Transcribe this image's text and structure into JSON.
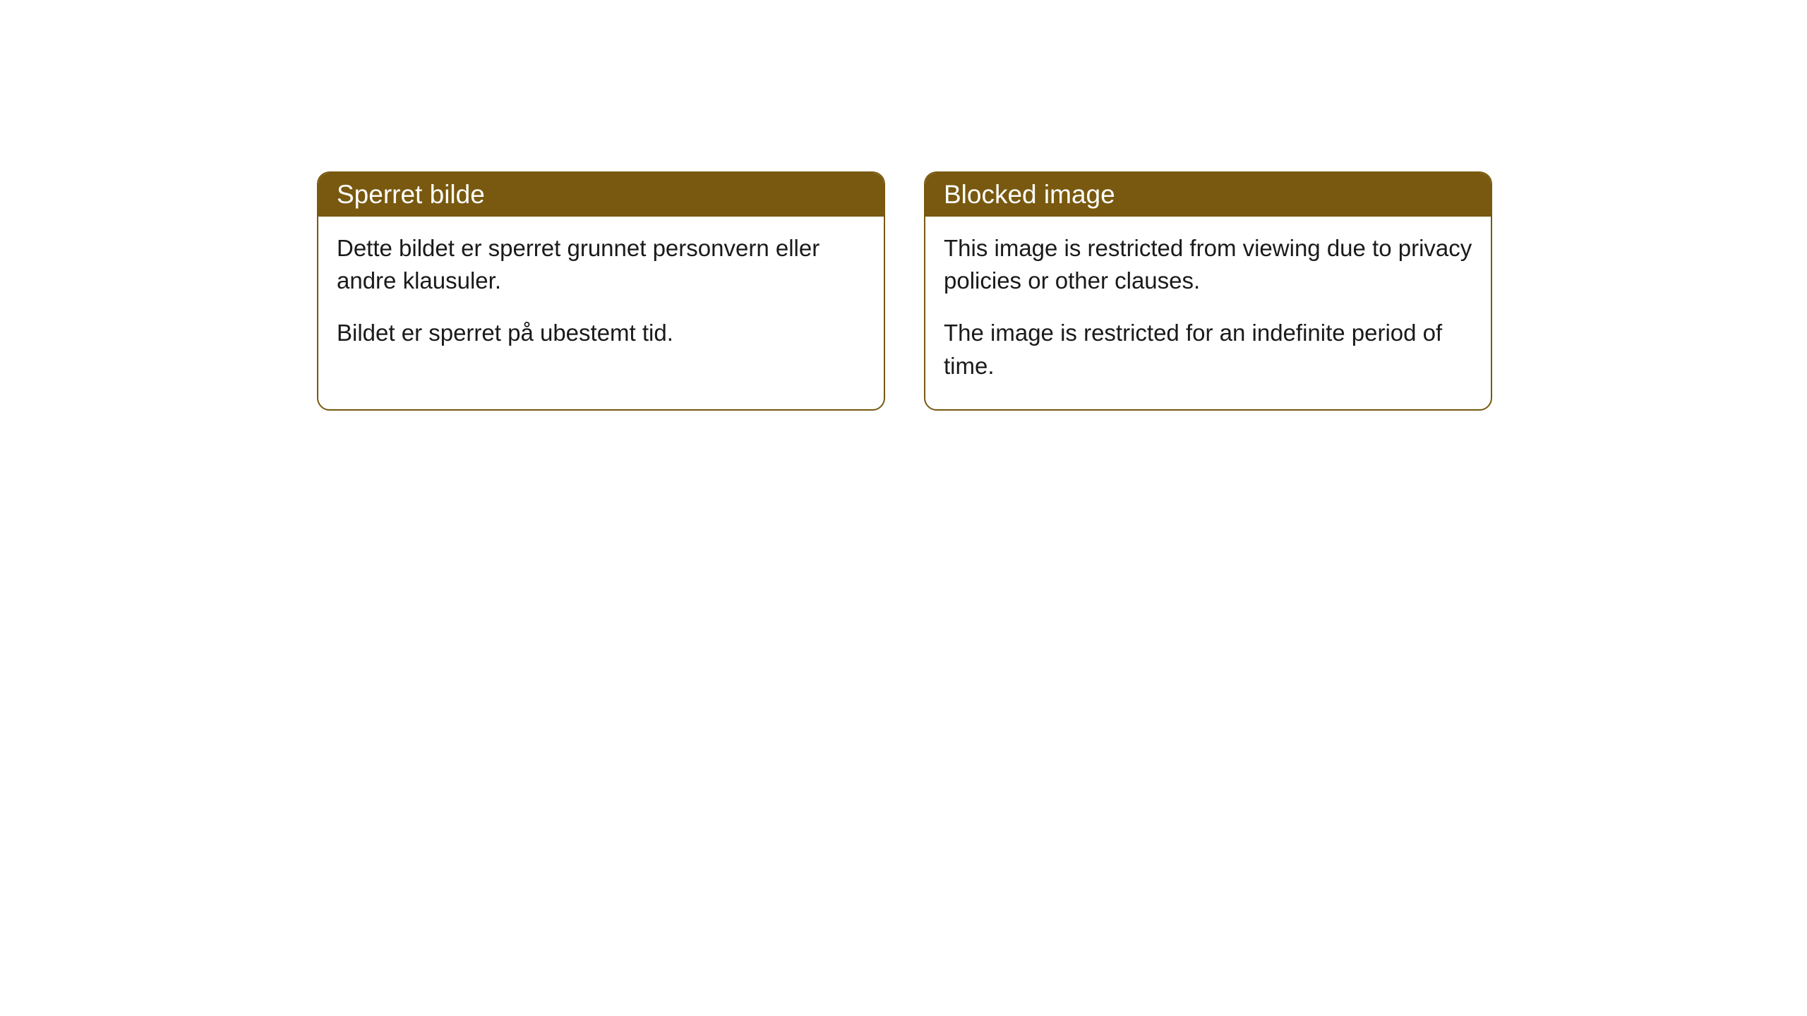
{
  "cards": [
    {
      "title": "Sperret bilde",
      "paragraph1": "Dette bildet er sperret grunnet personvern eller andre klausuler.",
      "paragraph2": "Bildet er sperret på ubestemt tid."
    },
    {
      "title": "Blocked image",
      "paragraph1": "This image is restricted from viewing due to privacy policies or other clauses.",
      "paragraph2": "The image is restricted for an indefinite period of time."
    }
  ],
  "styling": {
    "header_bg_color": "#78590f",
    "header_text_color": "#ffffff",
    "border_color": "#78590f",
    "card_bg_color": "#ffffff",
    "body_text_color": "#1a1a1a",
    "border_radius": 18,
    "header_font_size": 37,
    "body_font_size": 33
  }
}
